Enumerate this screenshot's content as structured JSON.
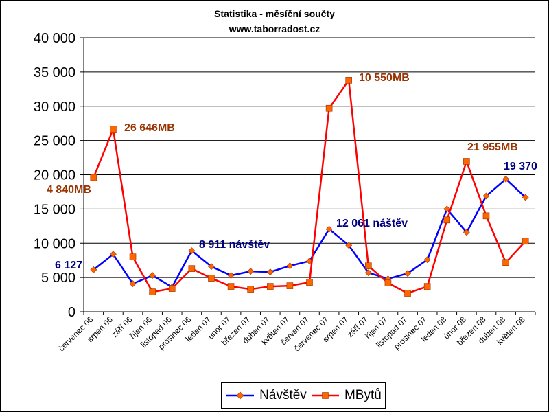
{
  "chart_data": {
    "type": "line",
    "title": "Statistika - měsíční součty",
    "subtitle": "www.taborradost.cz",
    "categories": [
      "červenec 06",
      "srpen 06",
      "září 06",
      "říjen 06",
      "listopad 06",
      "prosinec 06",
      "leden 07",
      "únor 07",
      "březen 07",
      "duben 07",
      "květen 07",
      "červen 07",
      "červenec 07",
      "srpen 07",
      "září 07",
      "říjen 07",
      "listopad 07",
      "prosinec 07",
      "leden 08",
      "únor 08",
      "březen 08",
      "duben 08",
      "květen 08"
    ],
    "ylim": [
      0,
      40000
    ],
    "yticks": [
      "0",
      "5 000",
      "10 000",
      "15 000",
      "20 000",
      "25 000",
      "30 000",
      "35 000",
      "40 000"
    ],
    "grid": true,
    "legend_position": "bottom",
    "series": [
      {
        "name": "Návštěv",
        "color": "#0000ff",
        "marker": "diamond",
        "marker_color": "#ff6600",
        "values": [
          6127,
          8400,
          4100,
          5300,
          3600,
          8911,
          6600,
          5300,
          5900,
          5800,
          6700,
          7400,
          12061,
          9700,
          5700,
          4800,
          5600,
          7600,
          15000,
          11600,
          16900,
          19370,
          16700
        ]
      },
      {
        "name": "MBytů",
        "color": "#ff0000",
        "marker": "square",
        "marker_color": "#ff6600",
        "values": [
          19600,
          26646,
          8000,
          2900,
          3400,
          6300,
          4900,
          3700,
          3300,
          3700,
          3800,
          4300,
          29700,
          33800,
          6700,
          4200,
          2700,
          3700,
          13400,
          21955,
          14000,
          7200,
          10300
        ]
      }
    ],
    "annotations": [
      {
        "text": "6 127",
        "color": "#000080"
      },
      {
        "text": "8 911 návštěv",
        "color": "#000080"
      },
      {
        "text": "12 061 náštěv",
        "color": "#000080"
      },
      {
        "text": "19 370",
        "color": "#000080"
      },
      {
        "text": "4 840MB",
        "color": "#993300"
      },
      {
        "text": "26 646MB",
        "color": "#993300"
      },
      {
        "text": "10 550MB",
        "color": "#993300"
      },
      {
        "text": "21 955MB",
        "color": "#993300"
      }
    ]
  }
}
